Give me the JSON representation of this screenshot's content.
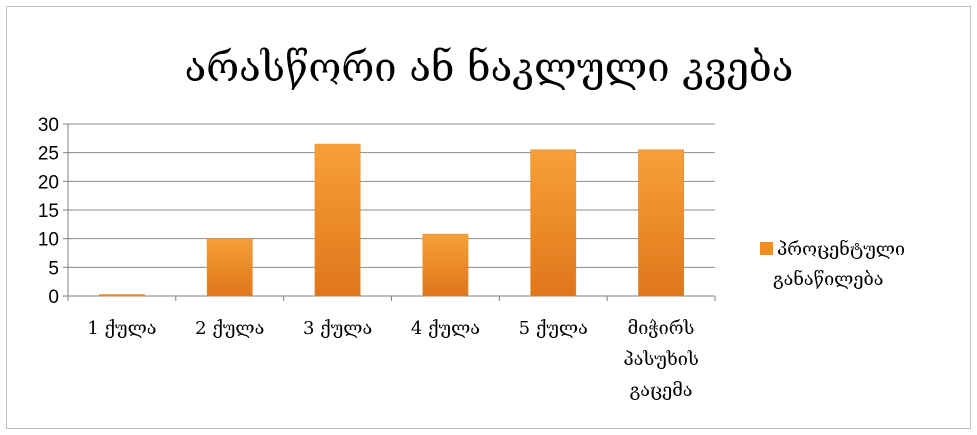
{
  "chart_data": {
    "type": "bar",
    "title": "არასწორი ან ნაკლული კვება",
    "categories": [
      [
        "1 ქულა"
      ],
      [
        "2 ქულა"
      ],
      [
        "3 ქულა"
      ],
      [
        "4 ქულა"
      ],
      [
        "5 ქულა"
      ],
      [
        "მიჭირს",
        "პასუხის",
        "გაცემა"
      ]
    ],
    "series": [
      {
        "name": [
          "პროცენტული",
          "განაწილება"
        ],
        "values": [
          0,
          10,
          26.5,
          10.8,
          25.5,
          25.5
        ],
        "color": "#f28e1f"
      }
    ],
    "ylim": [
      0,
      30
    ],
    "yticks": [
      0,
      5,
      10,
      15,
      20,
      25,
      30
    ],
    "grid": true,
    "legend_position": "right"
  }
}
